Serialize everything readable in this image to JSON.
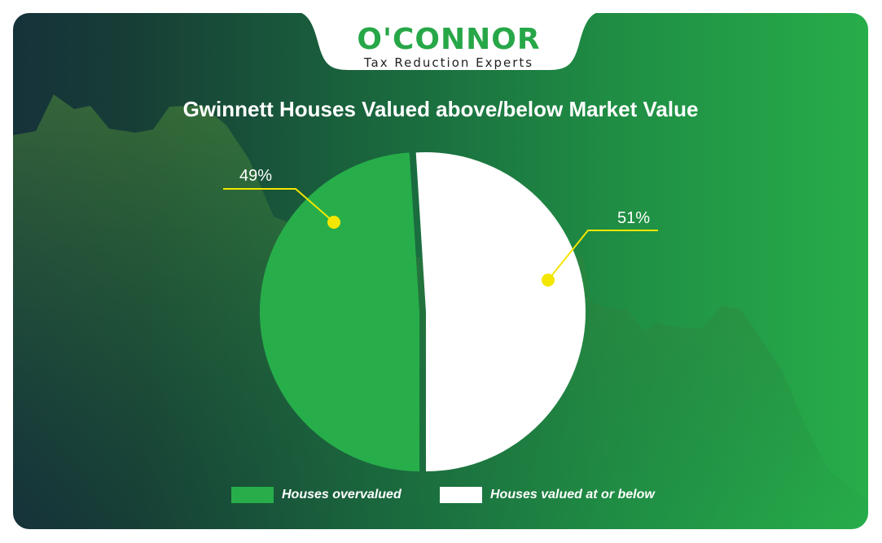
{
  "branding": {
    "logo_name": "O'CONNOR",
    "tagline": "Tax Reduction Experts"
  },
  "colors": {
    "overvalued": "#27ae4a",
    "at_or_below": "#ffffff",
    "callout": "#f3e600"
  },
  "chart_data": {
    "type": "pie",
    "title": "Gwinnett Houses Valued above/below Market Value",
    "slices": [
      {
        "label": "Houses overvalued",
        "value": 49,
        "display": "49%"
      },
      {
        "label": "Houses valued at or below",
        "value": 51,
        "display": "51%"
      }
    ],
    "legend_position": "bottom"
  }
}
